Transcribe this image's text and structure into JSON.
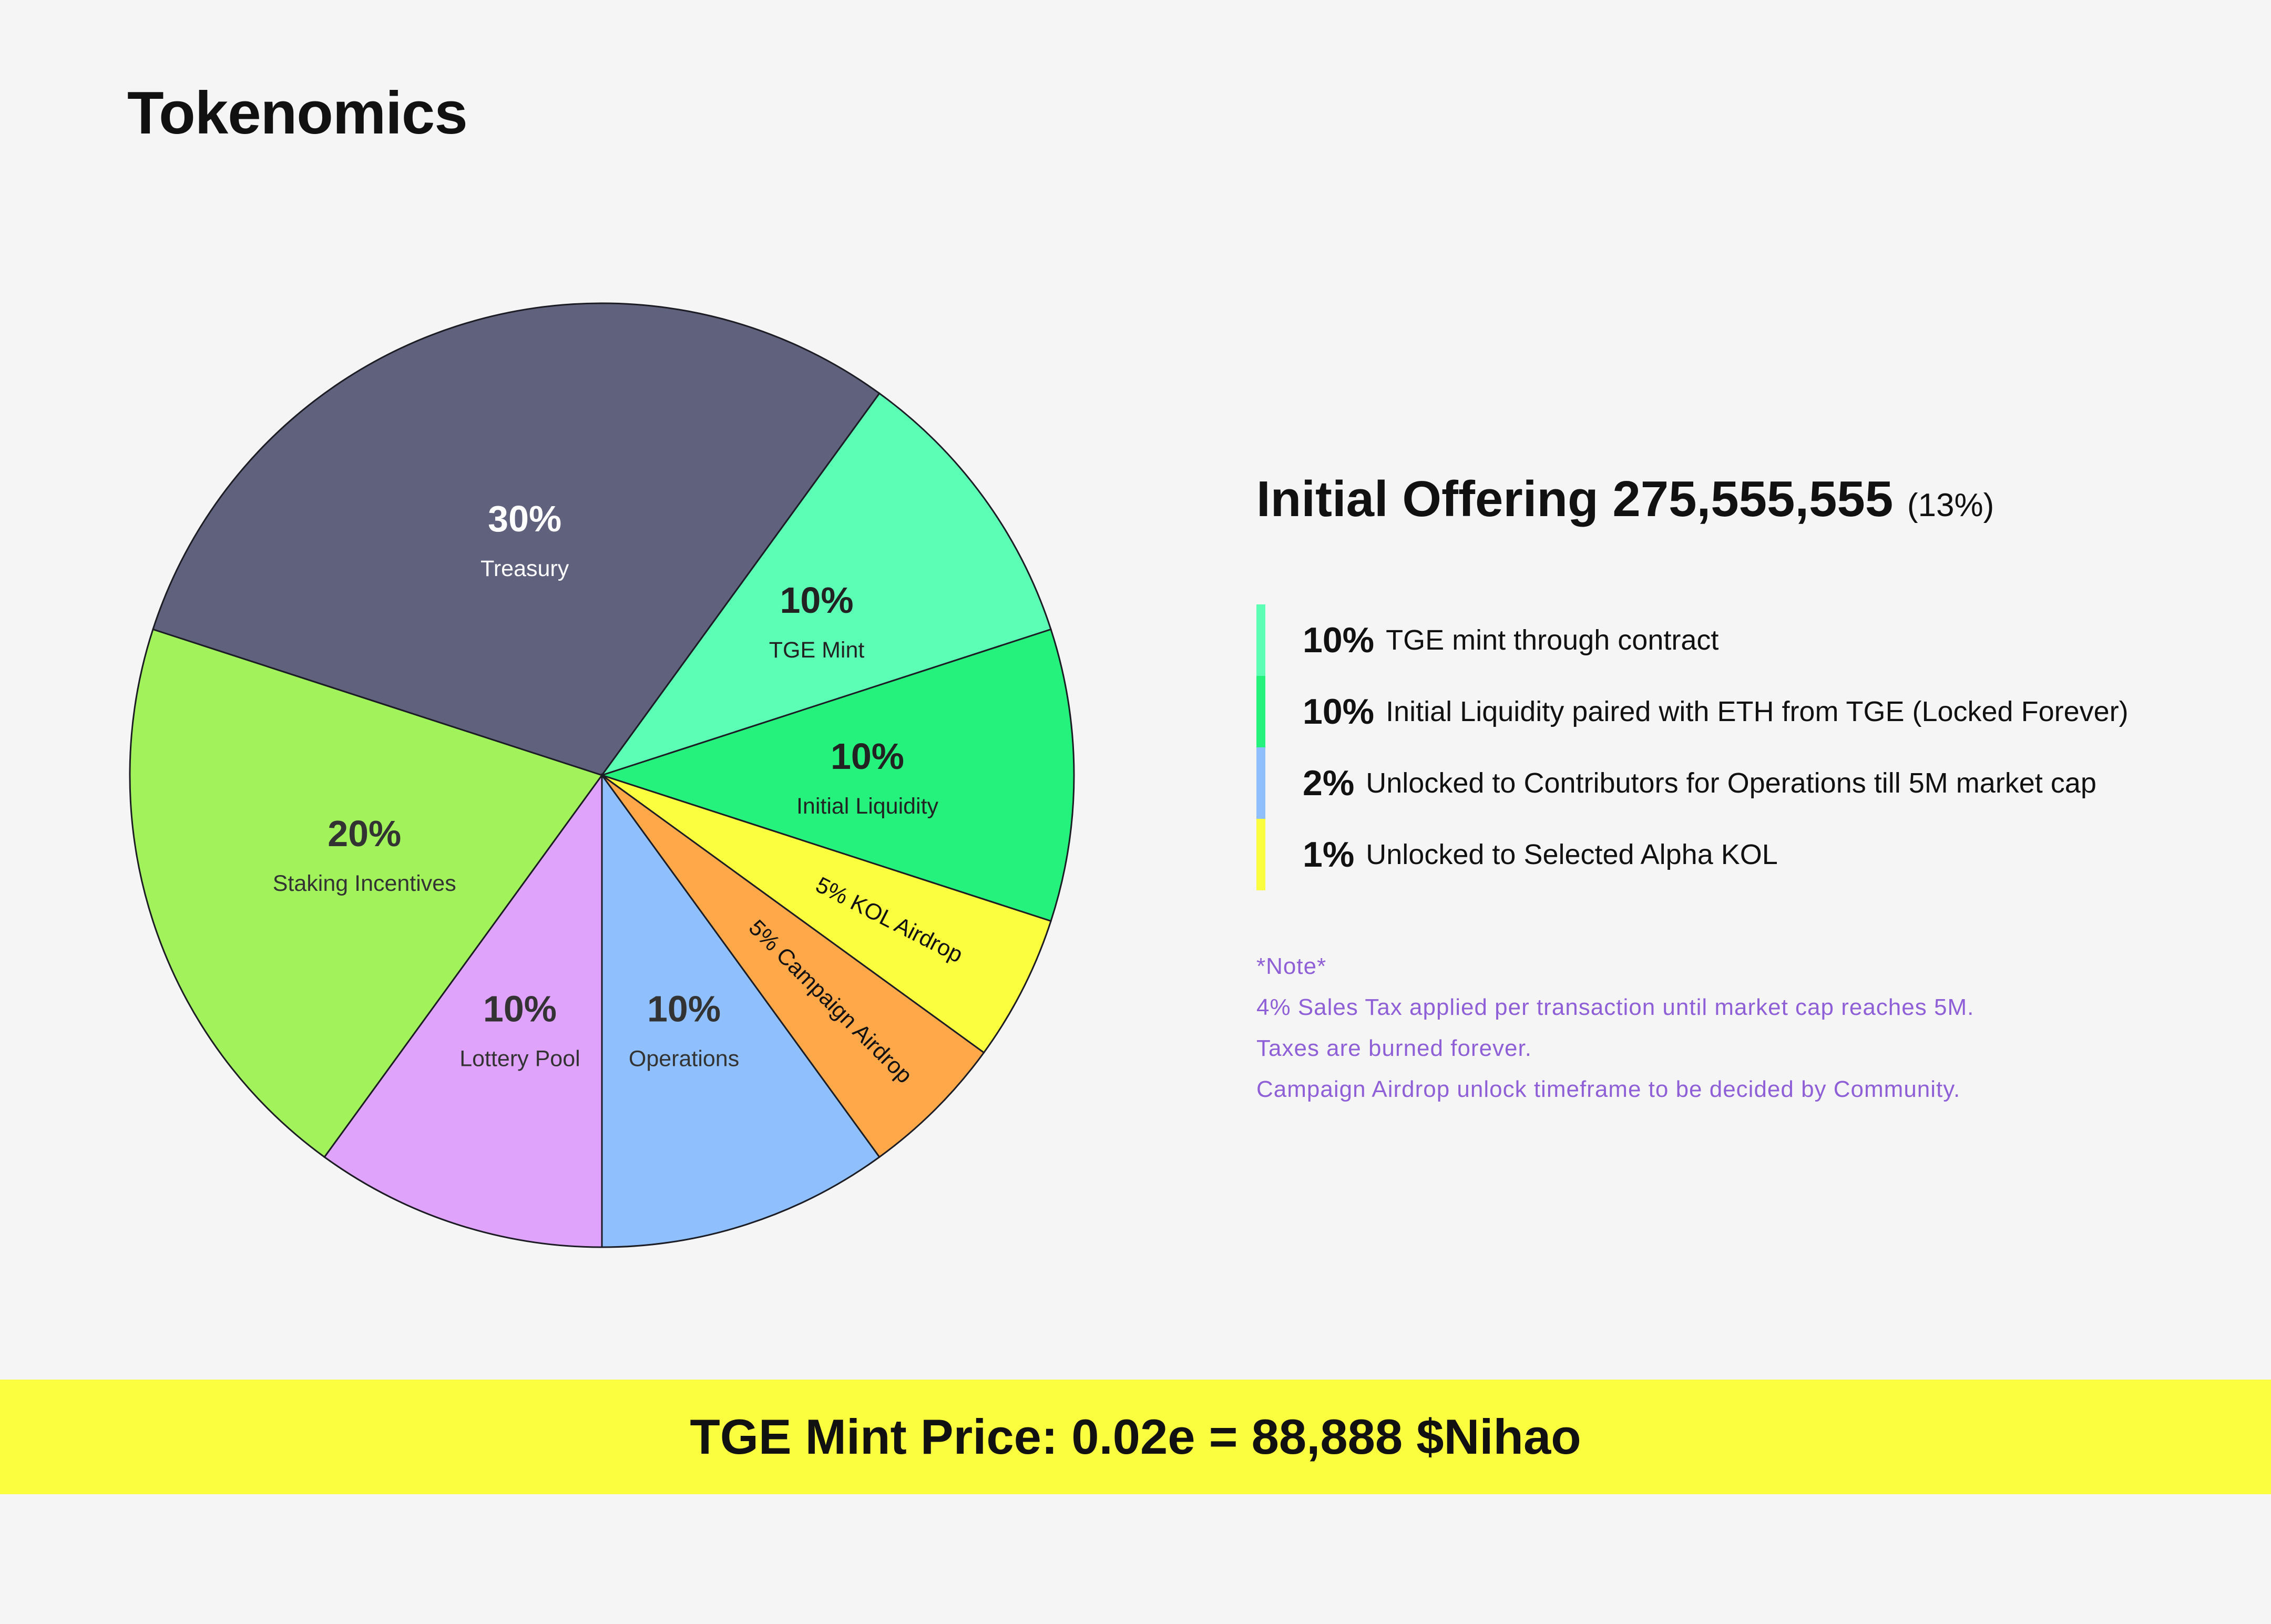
{
  "title": "Tokenomics",
  "chart_data": {
    "type": "pie",
    "slices": [
      {
        "pct": "30%",
        "name": "Treasury",
        "value": 30,
        "color": "#5f617d",
        "text_color": "#ffffff",
        "rotate_label": false
      },
      {
        "pct": "10%",
        "name": "TGE Mint",
        "value": 10,
        "color": "#5cfeb5",
        "text_color": "#222222",
        "rotate_label": false
      },
      {
        "pct": "10%",
        "name": "Initial Liquidity",
        "value": 10,
        "color": "#25f27d",
        "text_color": "#222222",
        "rotate_label": false
      },
      {
        "label": "5% KOL Airdrop",
        "value": 5,
        "color": "#fbfd3f",
        "text_color": "#111111",
        "rotate_label": true
      },
      {
        "label": "5% Campaign Airdrop",
        "value": 5,
        "color": "#fea84a",
        "text_color": "#111111",
        "rotate_label": true
      },
      {
        "pct": "10%",
        "name": "Operations",
        "value": 10,
        "color": "#8fc0fd",
        "text_color": "#333333",
        "rotate_label": false
      },
      {
        "pct": "10%",
        "name": "Lottery Pool",
        "value": 10,
        "color": "#e0a3fb",
        "text_color": "#333333",
        "rotate_label": false
      },
      {
        "pct": "20%",
        "name": "Staking Incentives",
        "value": 20,
        "color": "#a1f25b",
        "text_color": "#333333",
        "rotate_label": false
      }
    ]
  },
  "offering": {
    "label": "Initial Offering 275,555,555",
    "sub": "(13%)"
  },
  "legend": [
    {
      "pct": "10%",
      "text": "TGE mint through contract",
      "color": "#5cfeb5"
    },
    {
      "pct": "10%",
      "text": "Initial Liquidity paired with ETH from TGE (Locked Forever)",
      "color": "#25f27d"
    },
    {
      "pct": "2%",
      "text": "Unlocked to Contributors for Operations till 5M market cap",
      "color": "#8fc0fd"
    },
    {
      "pct": "1%",
      "text": "Unlocked to Selected Alpha KOL",
      "color": "#fbfd3f"
    }
  ],
  "notes": {
    "header": "*Note*",
    "lines": [
      "4% Sales Tax applied per transaction until market cap reaches 5M.",
      "Taxes are burned forever.",
      "Campaign Airdrop unlock timeframe to be decided by Community."
    ]
  },
  "price_banner": "TGE Mint Price: 0.02e = 88,888 $Nihao"
}
